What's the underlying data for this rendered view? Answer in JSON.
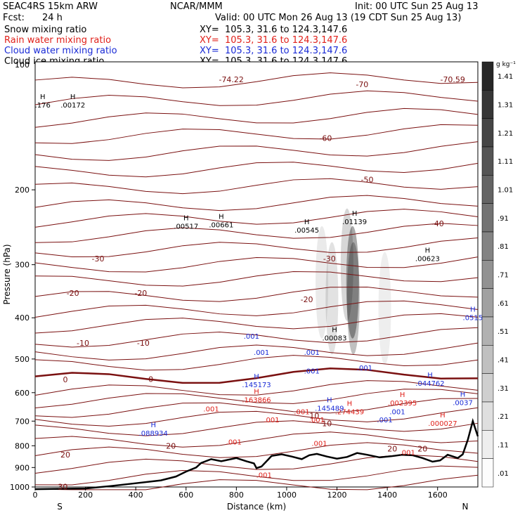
{
  "header": {
    "model": "SEAC4RS 15km ARW",
    "org": "NCAR/MMM",
    "init": "Init: 00 UTC Sun 25 Aug 13",
    "fcst_label": "Fcst:",
    "fcst_value": "24 h",
    "valid": "Valid: 00 UTC Mon 26 Aug 13 (19 CDT Sun 25 Aug 13)",
    "fields": [
      {
        "name": "Snow mixing ratio",
        "range": "XY=  105.3, 31.6 to 124.3,147.6",
        "color": "#000000"
      },
      {
        "name": "Rain water mixing ratio",
        "range": "XY=  105.3, 31.6 to 124.3,147.6",
        "color": "#e0201a"
      },
      {
        "name": "Cloud water mixing ratio",
        "range": "XY=  105.3, 31.6 to 124.3,147.6",
        "color": "#1a2bd6"
      },
      {
        "name": "Cloud ice mixing ratio",
        "range": "XY=  105.3, 31.6 to 124.3,147.6",
        "color": "#000000"
      }
    ]
  },
  "chart_data": {
    "type": "cross-section",
    "xlabel": "Distance (km)",
    "ylabel": "Pressure (hPa)",
    "xlim": [
      0,
      1760
    ],
    "ylim": [
      1000,
      100
    ],
    "y_scale": "log",
    "x_ticks": [
      0,
      200,
      400,
      600,
      800,
      1000,
      1200,
      1400,
      1600
    ],
    "y_ticks": [
      200,
      300,
      400,
      500,
      600,
      700,
      800,
      900,
      1000
    ],
    "y_top_label": "100",
    "x_end_labels": {
      "left": "S",
      "right": "N"
    },
    "colorbar": {
      "unit": "g kg⁻¹",
      "labels": [
        "1.41",
        "1.31",
        "1.21",
        "1.11",
        "1.01",
        ".91",
        ".81",
        ".71",
        ".61",
        ".51",
        ".41",
        ".31",
        ".21",
        ".11",
        ".01"
      ],
      "values": [
        1.41,
        1.31,
        1.21,
        1.11,
        1.01,
        0.91,
        0.81,
        0.71,
        0.61,
        0.51,
        0.41,
        0.31,
        0.21,
        0.11,
        0.01
      ]
    },
    "temperature_contours": [
      {
        "label": "-74.22",
        "x": 780,
        "p": 110
      },
      {
        "label": "-70",
        "x": 1300,
        "p": 113
      },
      {
        "label": "-70.59",
        "x": 1660,
        "p": 110
      },
      {
        "label": "-60",
        "x": 1155,
        "p": 151
      },
      {
        "label": "-50",
        "x": 1320,
        "p": 189
      },
      {
        "label": "-40",
        "x": 1600,
        "p": 240
      },
      {
        "label": "-30",
        "x": 250,
        "p": 290
      },
      {
        "label": "-30",
        "x": 1170,
        "p": 290
      },
      {
        "label": "-20",
        "x": 150,
        "p": 350
      },
      {
        "label": "-20",
        "x": 420,
        "p": 350
      },
      {
        "label": "-20",
        "x": 1080,
        "p": 362
      },
      {
        "label": "-10",
        "x": 190,
        "p": 458
      },
      {
        "label": "-10",
        "x": 430,
        "p": 458
      },
      {
        "label": "0",
        "x": 120,
        "p": 559
      },
      {
        "label": "0",
        "x": 460,
        "p": 558
      },
      {
        "label": "10",
        "x": 1110,
        "p": 680
      },
      {
        "label": "10",
        "x": 1160,
        "p": 709
      },
      {
        "label": "20",
        "x": 120,
        "p": 840
      },
      {
        "label": "20",
        "x": 540,
        "p": 800
      },
      {
        "label": "20",
        "x": 1420,
        "p": 812
      },
      {
        "label": "20",
        "x": 1540,
        "p": 813
      },
      {
        "label": "30",
        "x": 110,
        "p": 999
      }
    ],
    "snow_maxima": [
      {
        "label": ".00517",
        "x": 600,
        "p": 247
      },
      {
        "label": ".00661",
        "x": 740,
        "p": 245
      },
      {
        "label": ".00545",
        "x": 1080,
        "p": 252
      },
      {
        "label": ".01139",
        "x": 1270,
        "p": 241
      },
      {
        "label": ".00623",
        "x": 1560,
        "p": 294
      }
    ],
    "rain_maxima": [
      {
        "label": ".163866",
        "x": 880,
        "p": 632
      },
      {
        "label": ".274439",
        "x": 1250,
        "p": 675
      },
      {
        "label": ".002395",
        "x": 1460,
        "p": 643
      },
      {
        "label": ".000027",
        "x": 1620,
        "p": 718
      }
    ],
    "cloud_water_maxima": [
      {
        "label": ".088934",
        "x": 470,
        "p": 758
      },
      {
        "label": ".145173",
        "x": 880,
        "p": 582
      },
      {
        "label": ".145489",
        "x": 1170,
        "p": 662
      },
      {
        "label": ".044762",
        "x": 1570,
        "p": 578
      },
      {
        "label": ".0037",
        "x": 1700,
        "p": 642
      },
      {
        "label": ".0515",
        "x": 1740,
        "p": 405
      }
    ],
    "cloud_ice_maxima": [
      {
        "label": ".00172",
        "x": 150,
        "p": 128
      },
      {
        "label": ".176",
        "x": 30,
        "p": 128
      },
      {
        "label": ".00083",
        "x": 1190,
        "p": 452
      }
    ],
    "small_contour_labels": [
      {
        "label": ".001",
        "x": 860,
        "p": 448,
        "field": "cloud_water"
      },
      {
        "label": ".001",
        "x": 900,
        "p": 489,
        "field": "cloud_water"
      },
      {
        "label": ".001",
        "x": 1100,
        "p": 489,
        "field": "cloud_water"
      },
      {
        "label": ".001",
        "x": 1100,
        "p": 541,
        "field": "cloud_water"
      },
      {
        "label": ".001",
        "x": 1310,
        "p": 532,
        "field": "cloud_water"
      },
      {
        "label": ".001",
        "x": 1390,
        "p": 704,
        "field": "cloud_water"
      },
      {
        "label": ".001",
        "x": 1440,
        "p": 674,
        "field": "cloud_water"
      },
      {
        "label": ".001",
        "x": 700,
        "p": 664,
        "field": "rain"
      },
      {
        "label": ".001",
        "x": 940,
        "p": 704,
        "field": "rain"
      },
      {
        "label": ".001",
        "x": 1060,
        "p": 675,
        "field": "rain"
      },
      {
        "label": ".001",
        "x": 1120,
        "p": 705,
        "field": "rain"
      },
      {
        "label": ".001",
        "x": 790,
        "p": 795,
        "field": "rain"
      },
      {
        "label": ".001",
        "x": 1130,
        "p": 800,
        "field": "rain"
      },
      {
        "label": ".001",
        "x": 910,
        "p": 950,
        "field": "rain"
      },
      {
        "label": ".001",
        "x": 1480,
        "p": 841,
        "field": "rain"
      }
    ],
    "maxima_marker": "H",
    "terrain": [
      [
        0,
        1012
      ],
      [
        200,
        1008
      ],
      [
        300,
        995
      ],
      [
        400,
        980
      ],
      [
        500,
        965
      ],
      [
        560,
        945
      ],
      [
        600,
        920
      ],
      [
        640,
        900
      ],
      [
        660,
        878
      ],
      [
        700,
        860
      ],
      [
        740,
        870
      ],
      [
        800,
        855
      ],
      [
        840,
        870
      ],
      [
        870,
        880
      ],
      [
        880,
        903
      ],
      [
        900,
        895
      ],
      [
        920,
        870
      ],
      [
        940,
        845
      ],
      [
        980,
        838
      ],
      [
        1020,
        848
      ],
      [
        1060,
        860
      ],
      [
        1090,
        842
      ],
      [
        1120,
        836
      ],
      [
        1160,
        848
      ],
      [
        1200,
        858
      ],
      [
        1240,
        850
      ],
      [
        1280,
        832
      ],
      [
        1320,
        840
      ],
      [
        1370,
        852
      ],
      [
        1420,
        846
      ],
      [
        1460,
        840
      ],
      [
        1500,
        842
      ],
      [
        1540,
        855
      ],
      [
        1580,
        872
      ],
      [
        1610,
        866
      ],
      [
        1640,
        840
      ],
      [
        1680,
        855
      ],
      [
        1700,
        838
      ],
      [
        1720,
        775
      ],
      [
        1740,
        700
      ],
      [
        1760,
        760
      ]
    ]
  }
}
